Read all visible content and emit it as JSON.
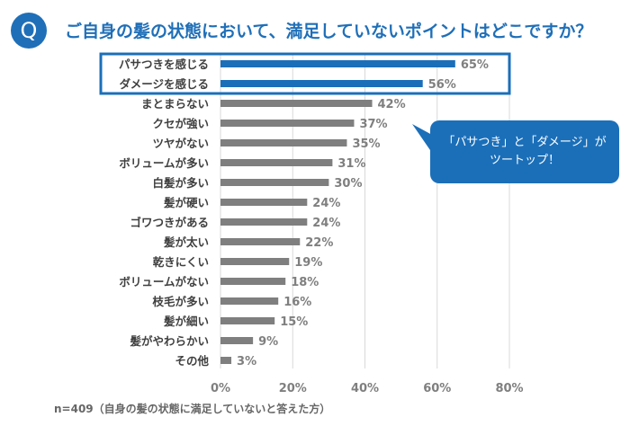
{
  "header": {
    "badge": "Q",
    "title": "ご自身の髪の状態において、満足していないポイントはどこですか？"
  },
  "footnote": "n=409（自身の髪の状態に満足していないと答えた方）",
  "callout": {
    "text": "「パサつき」と「ダメージ」が\nツートップ！"
  },
  "colors": {
    "highlight": "#1b6fb9",
    "bar": "#7f7f7f",
    "grid": "#d9d9d9",
    "label": "#404040",
    "value": "#7f7f7f"
  },
  "chart_data": {
    "type": "bar",
    "orientation": "horizontal",
    "categories": [
      "パサつきを感じる",
      "ダメージを感じる",
      "まとまらない",
      "クセが強い",
      "ツヤがない",
      "ボリュームが多い",
      "白髪が多い",
      "髪が硬い",
      "ゴワつきがある",
      "髪が太い",
      "乾きにくい",
      "ボリュームがない",
      "枝毛が多い",
      "髪が細い",
      "髪がやわらかい",
      "その他"
    ],
    "values": [
      65,
      56,
      42,
      37,
      35,
      31,
      30,
      24,
      24,
      22,
      19,
      18,
      16,
      15,
      9,
      3
    ],
    "value_labels": [
      "65%",
      "56%",
      "42%",
      "37%",
      "35%",
      "31%",
      "30%",
      "24%",
      "24%",
      "22%",
      "19%",
      "18%",
      "16%",
      "15%",
      "9%",
      "3%"
    ],
    "highlighted": [
      0,
      1
    ],
    "xlim": [
      0,
      80
    ],
    "xticks": [
      "0%",
      "20%",
      "40%",
      "60%",
      "80%"
    ],
    "grid": true
  }
}
